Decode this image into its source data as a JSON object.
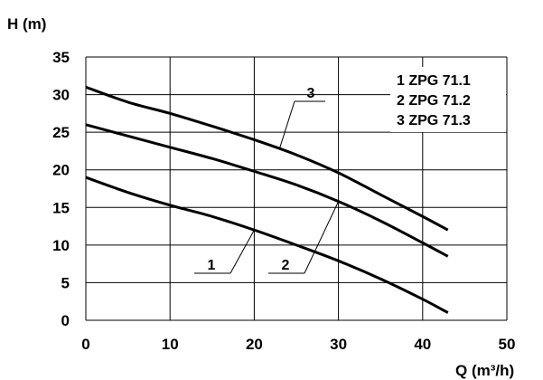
{
  "chart_data": {
    "type": "line",
    "xlabel": "Q (m³/h)",
    "ylabel": "H (m)",
    "xlim": [
      0,
      50
    ],
    "ylim": [
      0,
      35
    ],
    "xticks": [
      "0",
      "10",
      "20",
      "30",
      "40",
      "50"
    ],
    "yticks": [
      "0",
      "5",
      "10",
      "15",
      "20",
      "25",
      "30",
      "35"
    ],
    "grid": true,
    "legend_position": "top-right",
    "legend": [
      {
        "number": "1",
        "name": "ZPG 71.1"
      },
      {
        "number": "2",
        "name": "ZPG 71.2"
      },
      {
        "number": "3",
        "name": "ZPG 71.3"
      }
    ],
    "series": [
      {
        "callout": "1",
        "x": [
          0,
          5,
          10,
          15,
          20,
          25,
          30,
          35,
          40,
          43
        ],
        "y": [
          19,
          17,
          15.3,
          13.8,
          12,
          10,
          7.9,
          5.5,
          2.8,
          1
        ]
      },
      {
        "callout": "2",
        "x": [
          0,
          5,
          10,
          15,
          20,
          25,
          30,
          35,
          40,
          43
        ],
        "y": [
          26,
          24.5,
          23,
          21.5,
          19.8,
          18,
          15.8,
          13.2,
          10.3,
          8.5
        ]
      },
      {
        "callout": "3",
        "x": [
          0,
          5,
          10,
          15,
          20,
          25,
          30,
          35,
          40,
          43
        ],
        "y": [
          31,
          29,
          27.5,
          25.8,
          24,
          22,
          19.6,
          16.7,
          13.8,
          12
        ]
      }
    ]
  }
}
